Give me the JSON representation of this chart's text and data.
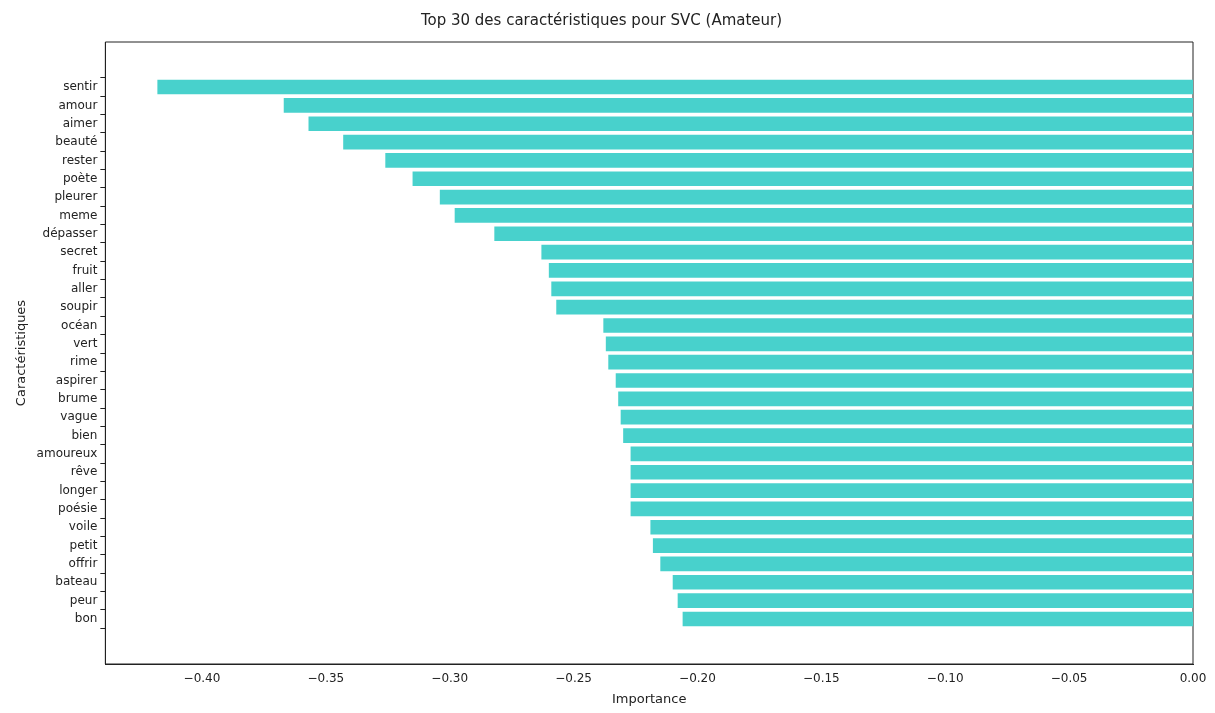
{
  "chart_data": {
    "type": "bar",
    "orientation": "horizontal",
    "title": "Top 30 des caractéristiques pour SVC (Amateur)",
    "xlabel": "Importance",
    "ylabel": "Caractéristiques",
    "categories": [
      "sentir",
      "amour",
      "aimer",
      "beauté",
      "rester",
      "poète",
      "pleurer",
      "meme",
      "dépasser",
      "secret",
      "fruit",
      "aller",
      "soupir",
      "océan",
      "vert",
      "rime",
      "aspirer",
      "brume",
      "vague",
      "bien",
      "amoureux",
      "rêve",
      "longer",
      "poésie",
      "voile",
      "petit",
      "offrir",
      "bateau",
      "peur",
      "bon"
    ],
    "values": [
      -0.418,
      -0.367,
      -0.357,
      -0.343,
      -0.326,
      -0.315,
      -0.304,
      -0.298,
      -0.282,
      -0.263,
      -0.26,
      -0.259,
      -0.257,
      -0.238,
      -0.237,
      -0.236,
      -0.233,
      -0.232,
      -0.231,
      -0.23,
      -0.227,
      -0.227,
      -0.227,
      -0.227,
      -0.219,
      -0.218,
      -0.215,
      -0.21,
      -0.208,
      -0.206
    ],
    "color": "#48d1cc",
    "xlim": [
      -0.439,
      0
    ],
    "xticks": [
      {
        "value": -0.4,
        "label": "−0.40"
      },
      {
        "value": -0.35,
        "label": "−0.35"
      },
      {
        "value": -0.3,
        "label": "−0.30"
      },
      {
        "value": -0.25,
        "label": "−0.25"
      },
      {
        "value": -0.2,
        "label": "−0.20"
      },
      {
        "value": -0.15,
        "label": "−0.15"
      },
      {
        "value": -0.1,
        "label": "−0.10"
      },
      {
        "value": -0.05,
        "label": "−0.05"
      },
      {
        "value": 0,
        "label": "0.00"
      }
    ],
    "grid": false,
    "legend": false
  }
}
